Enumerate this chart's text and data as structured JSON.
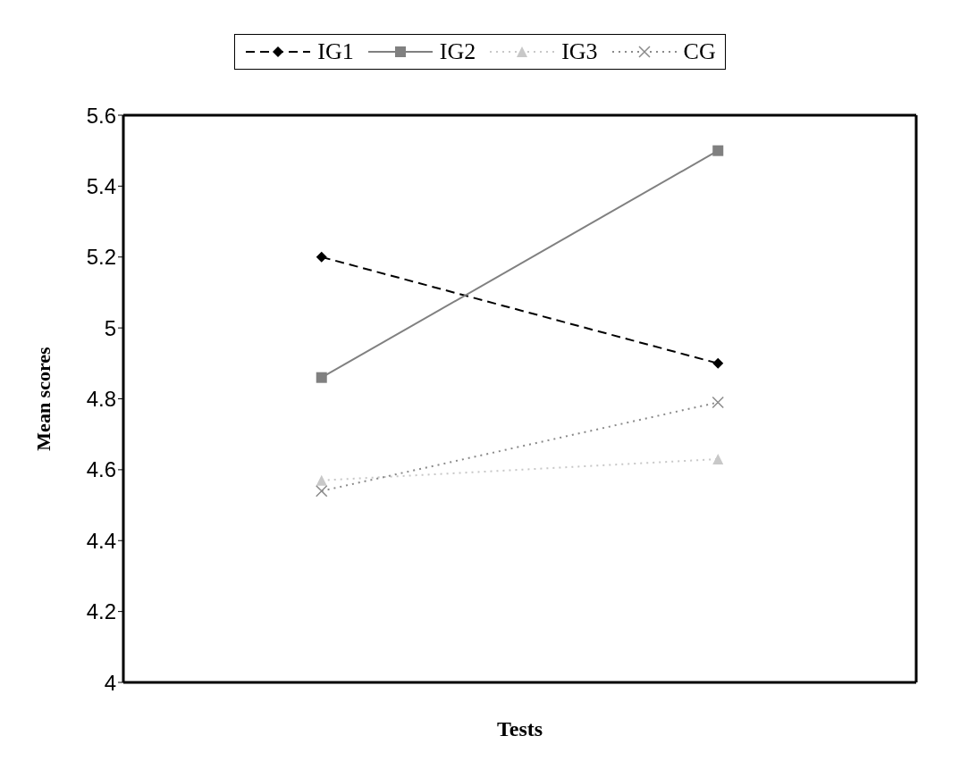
{
  "chart_data": {
    "type": "line",
    "xlabel": "Tests",
    "ylabel": "Mean scores",
    "categories": [
      null,
      null
    ],
    "series": [
      {
        "name": "IG1",
        "color": "#000000",
        "values": [
          5.2,
          4.9
        ],
        "line_style": "dashed",
        "marker": "diamond"
      },
      {
        "name": "IG2",
        "color": "#808080",
        "values": [
          4.86,
          5.5
        ],
        "line_style": "solid",
        "marker": "square"
      },
      {
        "name": "IG3",
        "color": "#c8c8c8",
        "values": [
          4.57,
          4.63
        ],
        "line_style": "dotted",
        "marker": "triangle"
      },
      {
        "name": "CG",
        "color": "#8a8a8a",
        "values": [
          4.54,
          4.79
        ],
        "line_style": "dotted",
        "marker": "cross"
      }
    ],
    "ylim": [
      4,
      5.6
    ],
    "yticks": [
      4,
      4.2,
      4.4,
      4.6,
      4.8,
      5,
      5.2,
      5.4,
      5.6
    ],
    "grid": false,
    "legend": "top",
    "tick_labels": "y"
  }
}
